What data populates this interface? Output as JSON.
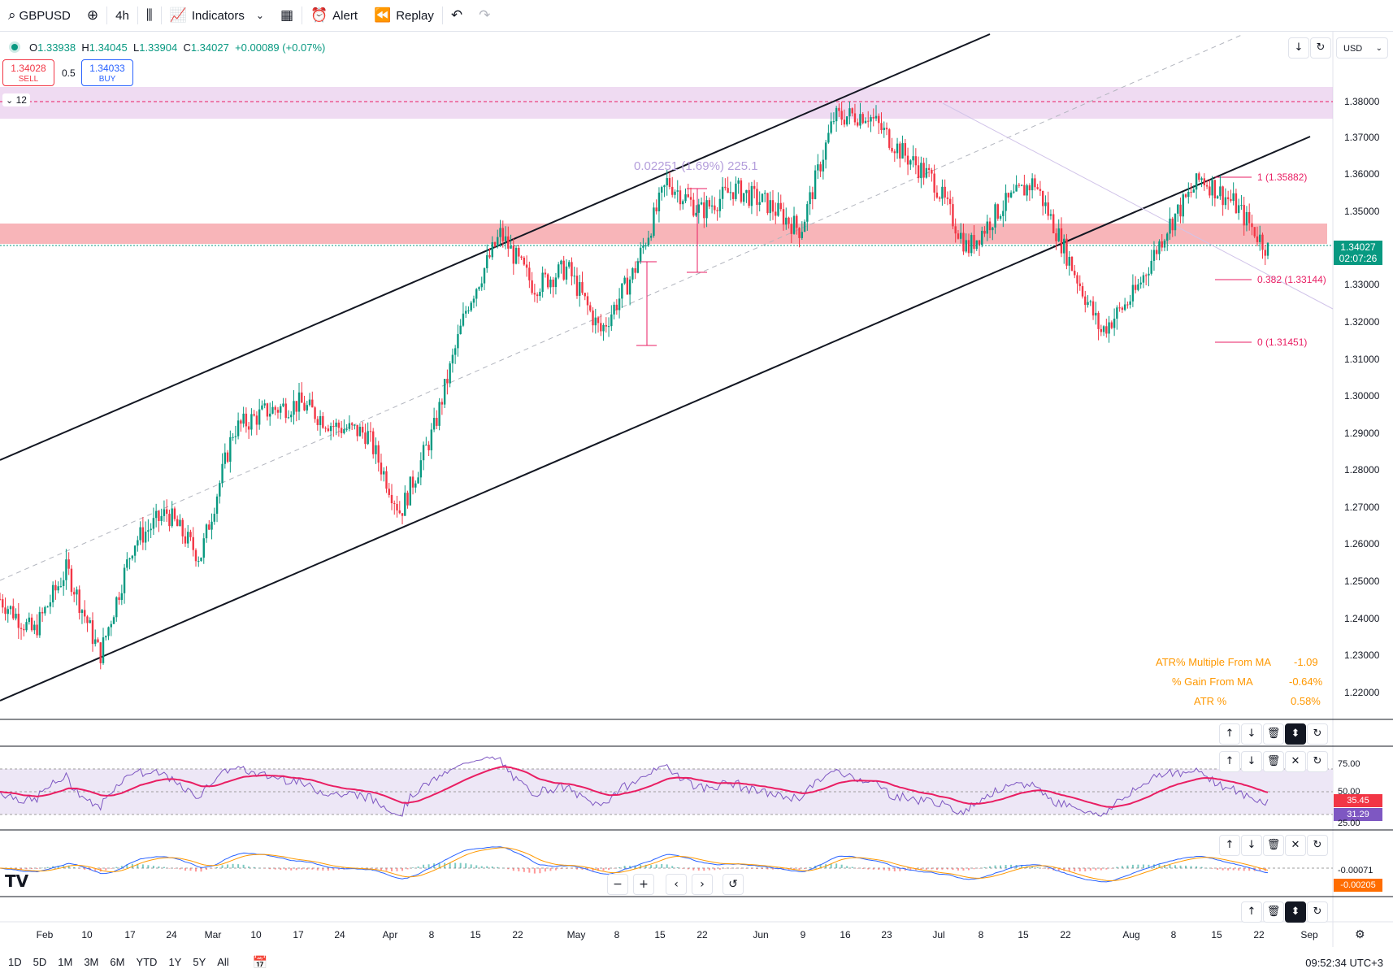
{
  "toolbar": {
    "symbol": "GBPUSD",
    "interval": "4h",
    "indicators_label": "Indicators",
    "alert_label": "Alert",
    "replay_label": "Replay"
  },
  "legend": {
    "o_label": "O",
    "o": "1.33938",
    "h_label": "H",
    "h": "1.34045",
    "l_label": "L",
    "l": "1.33904",
    "c_label": "C",
    "c": "1.34027",
    "change": "+0.00089 (+0.07%)"
  },
  "trade": {
    "sell_price": "1.34028",
    "sell_label": "SELL",
    "spread": "0.5",
    "buy_price": "1.34033",
    "buy_label": "BUY"
  },
  "collapse_count": "12",
  "currency": "USD",
  "price_axis": [
    "1.38000",
    "1.37000",
    "1.36000",
    "1.35000",
    "1.33000",
    "1.32000",
    "1.31000",
    "1.30000",
    "1.29000",
    "1.28000",
    "1.27000",
    "1.26000",
    "1.25000",
    "1.24000",
    "1.23000",
    "1.22000"
  ],
  "current_price": {
    "price": "1.34027",
    "countdown": "02:07:26"
  },
  "fib": {
    "level_1": "1 (1.35882)",
    "level_0382": "0.382 (1.33144)",
    "level_0": "0 (1.31451)"
  },
  "measure_label": "0.02251 (1.69%) 225.1",
  "stats": [
    {
      "label": "ATR% Multiple From MA",
      "value": "-1.09"
    },
    {
      "label": "% Gain From MA",
      "value": "-0.64%"
    },
    {
      "label": "ATR %",
      "value": "0.58%"
    }
  ],
  "rsi": {
    "level_high": "75.00",
    "level_mid": "50.00",
    "value_ma": "35.45",
    "value": "31.29",
    "level_low": "25.00"
  },
  "macd": {
    "value1": "-0.00071",
    "value2": "-0.00205"
  },
  "date_axis": [
    "Feb",
    "10",
    "17",
    "24",
    "Mar",
    "10",
    "17",
    "24",
    "Apr",
    "8",
    "15",
    "22",
    "May",
    "8",
    "15",
    "22",
    "Jun",
    "9",
    "16",
    "23",
    "Jul",
    "8",
    "15",
    "22",
    "Aug",
    "8",
    "15",
    "22",
    "Sep"
  ],
  "ranges": [
    "1D",
    "5D",
    "1M",
    "3M",
    "6M",
    "YTD",
    "1Y",
    "5Y",
    "All"
  ],
  "clock": "09:52:34 UTC+3",
  "logo": "TV",
  "colors": {
    "up": "#089981",
    "down": "#f23645",
    "rsi": "#7e57c2",
    "rsi_ma": "#e91e63",
    "stats": "#ff9800"
  },
  "chart_data": {
    "type": "candlestick",
    "symbol": "GBPUSD",
    "interval": "4h",
    "y_range": [
      1.215,
      1.398
    ],
    "x": [
      "Feb",
      "Mar",
      "Apr",
      "May",
      "Jun",
      "Jul",
      "Aug",
      "Sep"
    ],
    "close_path": [
      1.247,
      1.238,
      1.255,
      1.232,
      1.262,
      1.27,
      1.258,
      1.292,
      1.297,
      1.299,
      1.293,
      1.291,
      1.27,
      1.292,
      1.325,
      1.344,
      1.33,
      1.335,
      1.318,
      1.334,
      1.358,
      1.35,
      1.356,
      1.352,
      1.345,
      1.375,
      1.376,
      1.366,
      1.358,
      1.34,
      1.351,
      1.358,
      1.338,
      1.318,
      1.328,
      1.346,
      1.359,
      1.352,
      1.34
    ],
    "zones": [
      {
        "name": "supply",
        "from": 1.3755,
        "to": 1.3835
      },
      {
        "name": "resistance",
        "from": 1.3405,
        "to": 1.3458
      }
    ],
    "horizontal_line": 1.3797
  }
}
